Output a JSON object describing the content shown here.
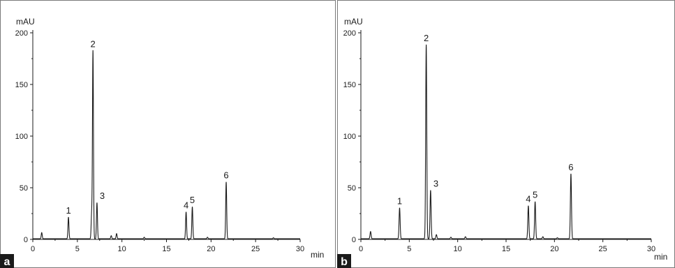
{
  "chart_data": [
    {
      "type": "line",
      "panel_label": "a",
      "y_unit": "mAU",
      "x_unit": "min",
      "xlim": [
        0,
        30
      ],
      "ylim": [
        0,
        200
      ],
      "x_ticks": [
        "0",
        "5",
        "10",
        "15",
        "20",
        "25",
        "30"
      ],
      "y_ticks": [
        "0",
        "50",
        "100",
        "150",
        "200"
      ],
      "grid": false,
      "line_color": "#1a1a1a",
      "peaks": [
        {
          "label": "1",
          "time": 4.0,
          "height": 21
        },
        {
          "label": "2",
          "time": 6.75,
          "height": 182
        },
        {
          "label": "3",
          "time": 7.2,
          "height": 35
        },
        {
          "label": "4",
          "time": 17.2,
          "height": 26
        },
        {
          "label": "5",
          "time": 17.9,
          "height": 31
        },
        {
          "label": "6",
          "time": 21.7,
          "height": 55
        }
      ],
      "minor_peaks": [
        {
          "time": 1.0,
          "height": 6
        },
        {
          "time": 6.6,
          "height": 23
        },
        {
          "time": 8.8,
          "height": 3
        },
        {
          "time": 9.4,
          "height": 5
        },
        {
          "time": 12.5,
          "height": 1.5
        },
        {
          "time": 19.6,
          "height": 1.5
        },
        {
          "time": 27.0,
          "height": 1
        }
      ]
    },
    {
      "type": "line",
      "panel_label": "b",
      "y_unit": "mAU",
      "x_unit": "min",
      "xlim": [
        0,
        30
      ],
      "ylim": [
        0,
        200
      ],
      "x_ticks": [
        "0",
        "5",
        "10",
        "15",
        "20",
        "25",
        "30"
      ],
      "y_ticks": [
        "0",
        "50",
        "100",
        "150",
        "200"
      ],
      "grid": false,
      "line_color": "#1a1a1a",
      "peaks": [
        {
          "label": "1",
          "time": 4.0,
          "height": 30
        },
        {
          "label": "2",
          "time": 6.75,
          "height": 188
        },
        {
          "label": "3",
          "time": 7.2,
          "height": 47
        },
        {
          "label": "4",
          "time": 17.3,
          "height": 32
        },
        {
          "label": "5",
          "time": 18.0,
          "height": 36
        },
        {
          "label": "6",
          "time": 21.7,
          "height": 63
        }
      ],
      "minor_peaks": [
        {
          "time": 1.0,
          "height": 7
        },
        {
          "time": 7.8,
          "height": 4
        },
        {
          "time": 9.3,
          "height": 1.5
        },
        {
          "time": 10.8,
          "height": 2
        },
        {
          "time": 18.8,
          "height": 2
        },
        {
          "time": 20.3,
          "height": 1
        }
      ]
    }
  ]
}
